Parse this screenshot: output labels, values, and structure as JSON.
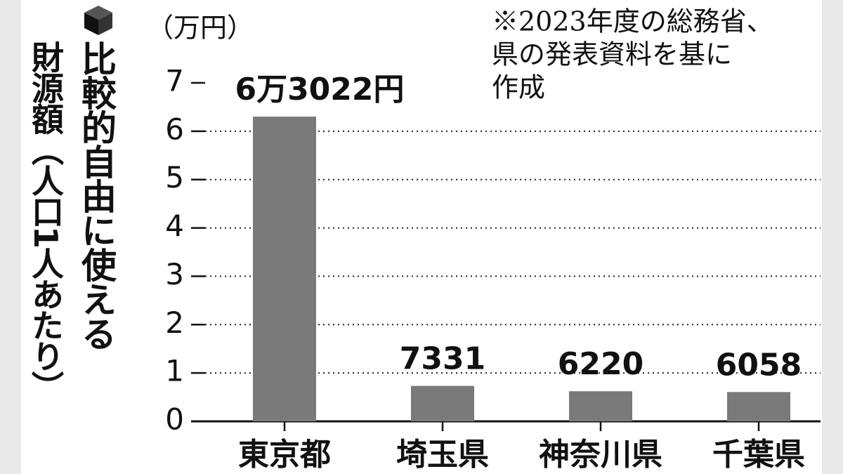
{
  "chart_data": {
    "type": "bar",
    "title": "比較的自由に使える",
    "subtitle": "財源額（人口1人あたり）",
    "y_label": "（万円）",
    "note": [
      "※2023年度の総務省、",
      "県の発表資料を基に",
      "作成"
    ],
    "categories": [
      "東京都",
      "埼玉県",
      "神奈川県",
      "千葉県"
    ],
    "values": [
      6.3022,
      0.7331,
      0.622,
      0.6058
    ],
    "value_labels": [
      "6万3022円",
      "7331",
      "6220",
      "6058"
    ],
    "color": "#7a7a7a",
    "ylim": [
      0,
      7
    ],
    "yticks": [
      0,
      1,
      2,
      3,
      4,
      5,
      6,
      7
    ],
    "grid": true
  }
}
